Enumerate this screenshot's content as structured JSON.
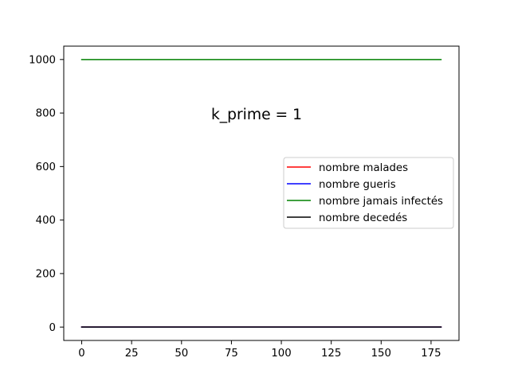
{
  "chart_data": {
    "type": "line",
    "title": "",
    "xlabel": "",
    "ylabel": "",
    "xlim": [
      -9,
      189
    ],
    "ylim": [
      -50,
      1050
    ],
    "x_ticks": [
      0,
      25,
      50,
      75,
      100,
      125,
      150,
      175
    ],
    "y_ticks": [
      0,
      200,
      400,
      600,
      800,
      1000
    ],
    "grid": false,
    "legend_position": "center-right",
    "annotation": "k_prime = 1",
    "x": [
      0,
      180
    ],
    "series": [
      {
        "name": "nombre malades",
        "color": "#ff0000",
        "values": [
          0,
          0
        ]
      },
      {
        "name": "nombre gueris",
        "color": "#0000ff",
        "values": [
          0,
          0
        ]
      },
      {
        "name": "nombre jamais infectés",
        "color": "#008000",
        "values": [
          1000,
          1000
        ]
      },
      {
        "name": "nombre decedés",
        "color": "#000000",
        "values": [
          0,
          0
        ]
      }
    ]
  }
}
